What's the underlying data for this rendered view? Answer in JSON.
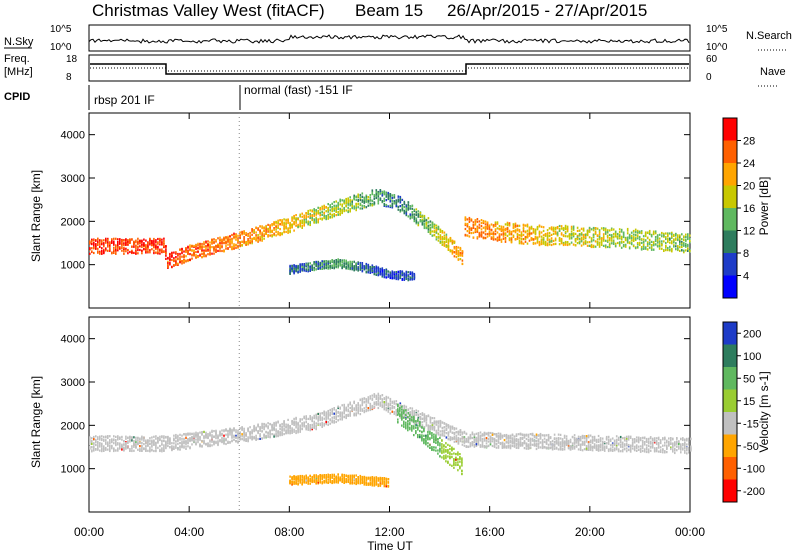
{
  "header": {
    "station": "Christmas Valley West (fitACF)",
    "beam": "Beam 15",
    "date_range": "26/Apr/2015 - 27/Apr/2015"
  },
  "time_axis": {
    "label": "Time UT",
    "ticks": [
      "00:00",
      "04:00",
      "08:00",
      "12:00",
      "16:00",
      "20:00",
      "00:00"
    ],
    "tick_hours": [
      0,
      4,
      8,
      12,
      16,
      20,
      24
    ],
    "range_hours": [
      0,
      24
    ]
  },
  "nsky_panel": {
    "left_label": "N.Sky",
    "right_label": "N.Search",
    "left_ticks": [
      "10^5",
      "10^0"
    ],
    "right_ticks": [
      "10^5",
      "10^0"
    ]
  },
  "freq_panel": {
    "left_label_1": "Freq.",
    "left_label_2": "[MHz]",
    "left_ticks": [
      "18",
      "8"
    ],
    "right_label": "Nave",
    "right_ticks": [
      "60",
      "0"
    ]
  },
  "cpid_panel": {
    "label": "CPID",
    "mode_1": "rbsp 201 IF",
    "mode_2": "normal (fast) -151 IF",
    "mode_2_start_hour": 6.0
  },
  "chart_data": [
    {
      "type": "heatmap",
      "title": "Power",
      "ylabel": "Slant Range [km]",
      "xlabel": "",
      "ylim": [
        0,
        4500
      ],
      "y_ticks": [
        1000,
        2000,
        3000,
        4000
      ],
      "colorbar": {
        "label": "Power [dB]",
        "ticks": [
          4,
          8,
          12,
          16,
          20,
          24,
          28
        ],
        "colors": [
          "#0000ff",
          "#1e3cc8",
          "#2e7d5e",
          "#5fb85f",
          "#c8c800",
          "#ffa500",
          "#ff6000",
          "#ff0000"
        ]
      },
      "bands": [
        {
          "name": "main-echo",
          "x": [
            0,
            1,
            2,
            3,
            3.1,
            4,
            6,
            8,
            10,
            11.5,
            12.5,
            14,
            14.9
          ],
          "y": [
            1450,
            1450,
            1450,
            1450,
            1100,
            1300,
            1600,
            1950,
            2350,
            2600,
            2400,
            1700,
            1200
          ],
          "power": [
            28,
            28,
            28,
            28,
            28,
            26,
            24,
            20,
            16,
            12,
            10,
            18,
            24
          ]
        },
        {
          "name": "afternoon-echo",
          "x": [
            15,
            16,
            17,
            18,
            19,
            20,
            21,
            22,
            23,
            24
          ],
          "y": [
            1900,
            1800,
            1750,
            1700,
            1700,
            1650,
            1650,
            1600,
            1550,
            1500
          ],
          "power": [
            24,
            24,
            22,
            20,
            18,
            18,
            16,
            16,
            16,
            14
          ]
        },
        {
          "name": "lower-echo",
          "x": [
            8,
            9,
            10,
            11,
            12,
            13
          ],
          "y": [
            900,
            1000,
            1050,
            950,
            800,
            750
          ],
          "power": [
            8,
            10,
            12,
            8,
            6,
            6
          ]
        }
      ]
    },
    {
      "type": "heatmap",
      "title": "Velocity",
      "ylabel": "Slant Range [km]",
      "xlabel": "Time UT",
      "ylim": [
        0,
        4500
      ],
      "y_ticks": [
        1000,
        2000,
        3000,
        4000
      ],
      "colorbar": {
        "label": "Velocity [m s-1]",
        "ticks": [
          200,
          100,
          50,
          15,
          -15,
          -50,
          -100,
          -200
        ],
        "colors": [
          "#1e3cc8",
          "#2e7d5e",
          "#5fb85f",
          "#9acd32",
          "#c0c0c0",
          "#ffa500",
          "#ff6000",
          "#ff0000"
        ]
      },
      "bands": [
        {
          "name": "ground-scatter",
          "x": [
            0,
            3,
            6,
            9,
            11.5,
            15,
            18,
            21,
            24
          ],
          "y": [
            1600,
            1600,
            1800,
            2100,
            2600,
            1700,
            1650,
            1600,
            1550
          ],
          "velocity": [
            0,
            0,
            0,
            0,
            0,
            0,
            0,
            0,
            0
          ]
        },
        {
          "name": "positive-flow",
          "x": [
            12.3,
            13,
            14,
            14.9
          ],
          "y": [
            2300,
            2000,
            1500,
            1100
          ],
          "velocity": [
            60,
            60,
            50,
            50
          ]
        },
        {
          "name": "negative-flow",
          "x": [
            8,
            10,
            12
          ],
          "y": [
            750,
            800,
            700
          ],
          "velocity": [
            -50,
            -40,
            -30
          ]
        }
      ]
    }
  ]
}
